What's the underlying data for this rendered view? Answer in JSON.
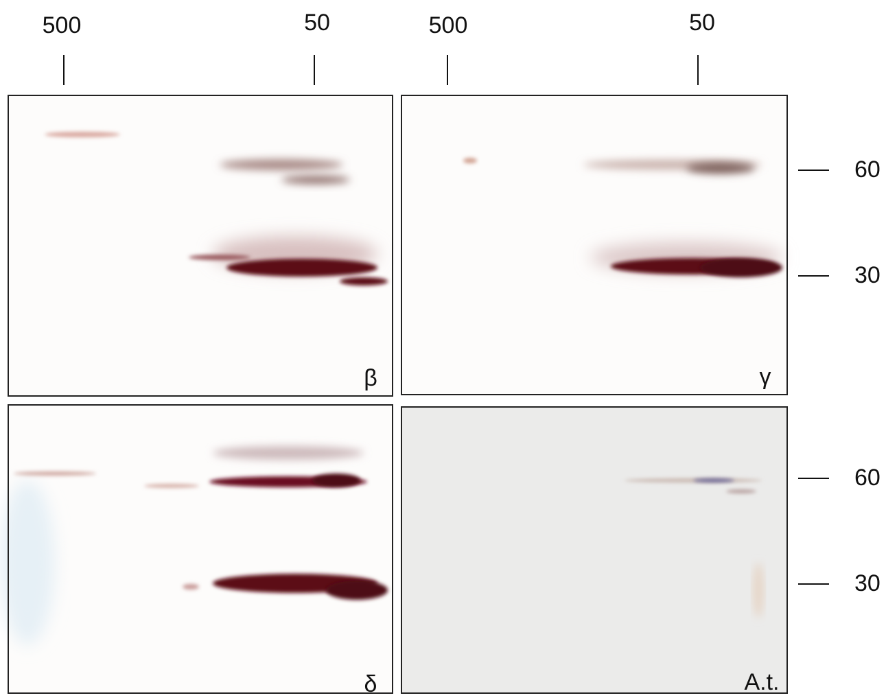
{
  "top_labels": [
    "500",
    "50",
    "500",
    "50"
  ],
  "right_labels": [
    "60",
    "30",
    "60",
    "30"
  ],
  "panels": [
    {
      "label": "β"
    },
    {
      "label": "γ"
    },
    {
      "label": "δ"
    },
    {
      "label": "A.t."
    }
  ]
}
